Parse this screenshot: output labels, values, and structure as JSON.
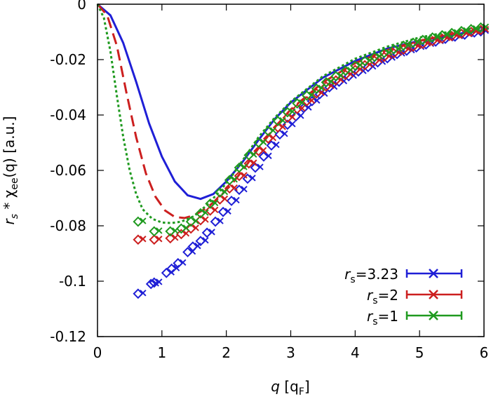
{
  "chart_data": {
    "type": "line",
    "xlabel": {
      "var": "q",
      "unit": "[q",
      "unit_sub": "F",
      "unit_end": "]"
    },
    "ylabel": {
      "var": "r",
      "var_sub": "s",
      "mid": " * χ",
      "mid_sub": "ee",
      "end": "(q) [a.u.]"
    },
    "xlim": [
      0,
      6
    ],
    "ylim": [
      -0.12,
      0
    ],
    "xticks": [
      0,
      1,
      2,
      3,
      4,
      5,
      6
    ],
    "xtick_labels": [
      "0",
      "1",
      "2",
      "3",
      "4",
      "5",
      "6"
    ],
    "yticks": [
      0,
      -0.02,
      -0.04,
      -0.06,
      -0.08,
      -0.1,
      -0.12
    ],
    "ytick_labels": [
      "0",
      "-0.02",
      "-0.04",
      "-0.06",
      "-0.08",
      "-0.1",
      "-0.12"
    ],
    "grid": false,
    "legend_position": "bottom-right",
    "series": [
      {
        "name": "rs=3.23",
        "legend_var": "r",
        "legend_sub": "s",
        "legend_value": "=3.23",
        "color": "#1f1fd6",
        "curve_style": "solid",
        "curve": [
          [
            0,
            0
          ],
          [
            0.2,
            -0.004
          ],
          [
            0.4,
            -0.014
          ],
          [
            0.6,
            -0.028
          ],
          [
            0.8,
            -0.043
          ],
          [
            1.0,
            -0.055
          ],
          [
            1.2,
            -0.064
          ],
          [
            1.4,
            -0.069
          ],
          [
            1.6,
            -0.0703
          ],
          [
            1.8,
            -0.0685
          ],
          [
            2.0,
            -0.064
          ],
          [
            2.25,
            -0.057
          ],
          [
            2.5,
            -0.049
          ],
          [
            2.75,
            -0.0415
          ],
          [
            3.0,
            -0.0355
          ],
          [
            3.5,
            -0.0265
          ],
          [
            4.0,
            -0.0205
          ],
          [
            4.5,
            -0.016
          ],
          [
            5.0,
            -0.0132
          ],
          [
            5.5,
            -0.011
          ],
          [
            6.0,
            -0.0095
          ]
        ],
        "points": [
          [
            0.63,
            -0.1045
          ],
          [
            0.83,
            -0.101
          ],
          [
            0.88,
            -0.1005
          ],
          [
            1.07,
            -0.097
          ],
          [
            1.15,
            -0.0955
          ],
          [
            1.25,
            -0.0935
          ],
          [
            1.4,
            -0.0895
          ],
          [
            1.48,
            -0.0875
          ],
          [
            1.6,
            -0.0855
          ],
          [
            1.7,
            -0.0825
          ],
          [
            1.83,
            -0.0785
          ],
          [
            1.95,
            -0.075
          ],
          [
            2.08,
            -0.071
          ],
          [
            2.2,
            -0.067
          ],
          [
            2.33,
            -0.063
          ],
          [
            2.45,
            -0.059
          ],
          [
            2.58,
            -0.055
          ],
          [
            2.7,
            -0.051
          ],
          [
            2.83,
            -0.047
          ],
          [
            2.95,
            -0.0435
          ],
          [
            3.08,
            -0.0405
          ],
          [
            3.2,
            -0.0375
          ],
          [
            3.33,
            -0.035
          ],
          [
            3.45,
            -0.0325
          ],
          [
            3.6,
            -0.03
          ],
          [
            3.75,
            -0.028
          ],
          [
            3.9,
            -0.026
          ],
          [
            4.05,
            -0.0243
          ],
          [
            4.2,
            -0.0227
          ],
          [
            4.35,
            -0.021
          ],
          [
            4.5,
            -0.0195
          ],
          [
            4.65,
            -0.018
          ],
          [
            4.8,
            -0.0168
          ],
          [
            4.95,
            -0.0156
          ],
          [
            5.1,
            -0.0145
          ],
          [
            5.25,
            -0.0135
          ],
          [
            5.4,
            -0.0125
          ],
          [
            5.55,
            -0.0117
          ],
          [
            5.7,
            -0.011
          ],
          [
            5.85,
            -0.0102
          ],
          [
            5.95,
            -0.0098
          ]
        ]
      },
      {
        "name": "rs=2",
        "legend_var": "r",
        "legend_sub": "s",
        "legend_value": "=2",
        "color": "#cc1f1f",
        "curve_style": "dashed",
        "curve": [
          [
            0,
            0
          ],
          [
            0.15,
            -0.004
          ],
          [
            0.3,
            -0.015
          ],
          [
            0.45,
            -0.032
          ],
          [
            0.6,
            -0.048
          ],
          [
            0.75,
            -0.061
          ],
          [
            0.9,
            -0.0695
          ],
          [
            1.05,
            -0.0745
          ],
          [
            1.2,
            -0.0768
          ],
          [
            1.35,
            -0.0772
          ],
          [
            1.5,
            -0.0762
          ],
          [
            1.7,
            -0.0735
          ],
          [
            1.9,
            -0.0695
          ],
          [
            2.1,
            -0.0645
          ],
          [
            2.3,
            -0.0585
          ],
          [
            2.5,
            -0.052
          ],
          [
            2.75,
            -0.0445
          ],
          [
            3.0,
            -0.038
          ],
          [
            3.5,
            -0.0282
          ],
          [
            4.0,
            -0.0213
          ],
          [
            4.5,
            -0.0165
          ],
          [
            5.0,
            -0.0132
          ],
          [
            5.5,
            -0.0108
          ],
          [
            6.0,
            -0.009
          ]
        ],
        "points": [
          [
            0.63,
            -0.085
          ],
          [
            0.88,
            -0.085
          ],
          [
            1.13,
            -0.0845
          ],
          [
            1.3,
            -0.083
          ],
          [
            1.45,
            -0.081
          ],
          [
            1.6,
            -0.078
          ],
          [
            1.75,
            -0.0745
          ],
          [
            1.9,
            -0.0705
          ],
          [
            2.05,
            -0.0665
          ],
          [
            2.2,
            -0.062
          ],
          [
            2.35,
            -0.0575
          ],
          [
            2.5,
            -0.053
          ],
          [
            2.65,
            -0.0485
          ],
          [
            2.8,
            -0.0445
          ],
          [
            2.95,
            -0.041
          ],
          [
            3.1,
            -0.0378
          ],
          [
            3.25,
            -0.035
          ],
          [
            3.4,
            -0.0322
          ],
          [
            3.55,
            -0.0297
          ],
          [
            3.7,
            -0.0275
          ],
          [
            3.85,
            -0.0255
          ],
          [
            4.0,
            -0.0237
          ],
          [
            4.15,
            -0.022
          ],
          [
            4.3,
            -0.0204
          ],
          [
            4.45,
            -0.019
          ],
          [
            4.6,
            -0.0177
          ],
          [
            4.75,
            -0.0164
          ],
          [
            4.9,
            -0.0153
          ],
          [
            5.05,
            -0.0143
          ],
          [
            5.2,
            -0.0133
          ],
          [
            5.35,
            -0.0124
          ],
          [
            5.5,
            -0.0115
          ],
          [
            5.65,
            -0.0107
          ],
          [
            5.8,
            -0.01
          ],
          [
            5.95,
            -0.0093
          ]
        ]
      },
      {
        "name": "rs=1",
        "legend_var": "r",
        "legend_sub": "s",
        "legend_value": "=1",
        "color": "#1f9a1f",
        "curve_style": "dotted",
        "curve": [
          [
            0,
            0
          ],
          [
            0.1,
            -0.005
          ],
          [
            0.2,
            -0.017
          ],
          [
            0.3,
            -0.033
          ],
          [
            0.4,
            -0.048
          ],
          [
            0.5,
            -0.06
          ],
          [
            0.6,
            -0.0685
          ],
          [
            0.7,
            -0.074
          ],
          [
            0.85,
            -0.0775
          ],
          [
            1.0,
            -0.0788
          ],
          [
            1.15,
            -0.079
          ],
          [
            1.3,
            -0.0785
          ],
          [
            1.5,
            -0.0765
          ],
          [
            1.7,
            -0.0725
          ],
          [
            1.9,
            -0.0675
          ],
          [
            2.1,
            -0.0615
          ],
          [
            2.3,
            -0.0548
          ],
          [
            2.5,
            -0.048
          ],
          [
            2.75,
            -0.041
          ],
          [
            3.0,
            -0.0352
          ],
          [
            3.5,
            -0.026
          ],
          [
            4.0,
            -0.0197
          ],
          [
            4.5,
            -0.0153
          ],
          [
            5.0,
            -0.012
          ],
          [
            5.5,
            -0.0098
          ],
          [
            6.0,
            -0.0082
          ]
        ],
        "points": [
          [
            0.63,
            -0.0785
          ],
          [
            0.88,
            -0.082
          ],
          [
            1.13,
            -0.082
          ],
          [
            1.3,
            -0.081
          ],
          [
            1.45,
            -0.0785
          ],
          [
            1.6,
            -0.0755
          ],
          [
            1.75,
            -0.072
          ],
          [
            1.9,
            -0.068
          ],
          [
            2.05,
            -0.0635
          ],
          [
            2.2,
            -0.059
          ],
          [
            2.35,
            -0.0545
          ],
          [
            2.5,
            -0.05
          ],
          [
            2.65,
            -0.0458
          ],
          [
            2.8,
            -0.0422
          ],
          [
            2.95,
            -0.039
          ],
          [
            3.1,
            -0.0358
          ],
          [
            3.25,
            -0.033
          ],
          [
            3.4,
            -0.0305
          ],
          [
            3.55,
            -0.0282
          ],
          [
            3.7,
            -0.026
          ],
          [
            3.85,
            -0.024
          ],
          [
            4.0,
            -0.0222
          ],
          [
            4.15,
            -0.0205
          ],
          [
            4.3,
            -0.019
          ],
          [
            4.45,
            -0.0176
          ],
          [
            4.6,
            -0.0163
          ],
          [
            4.75,
            -0.015
          ],
          [
            4.9,
            -0.0139
          ],
          [
            5.05,
            -0.0129
          ],
          [
            5.2,
            -0.012
          ],
          [
            5.35,
            -0.0112
          ],
          [
            5.5,
            -0.0104
          ],
          [
            5.65,
            -0.0097
          ],
          [
            5.8,
            -0.009
          ],
          [
            5.95,
            -0.0084
          ]
        ]
      }
    ]
  }
}
